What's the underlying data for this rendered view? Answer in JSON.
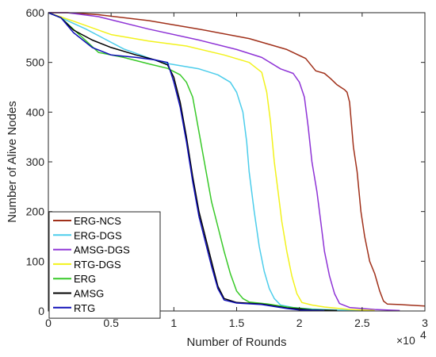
{
  "chart_data": {
    "type": "line",
    "title": "",
    "xlabel": "Number of Rounds",
    "ylabel": "Number of Alive Nodes",
    "x_exponent_label": "×10",
    "x_exponent_power": "4",
    "xlim": [
      0,
      3
    ],
    "ylim": [
      0,
      600
    ],
    "x_ticks": [
      0,
      0.5,
      1,
      1.5,
      2,
      2.5,
      3
    ],
    "x_tick_labels": [
      "0",
      "0.5",
      "1",
      "1.5",
      "2",
      "2.5",
      "3"
    ],
    "y_ticks": [
      0,
      100,
      200,
      300,
      400,
      500,
      600
    ],
    "y_tick_labels": [
      "0",
      "100",
      "200",
      "300",
      "400",
      "500",
      "600"
    ],
    "grid": false,
    "legend_position": "bottom-left",
    "series": [
      {
        "name": "ERG-NCS",
        "color": "#A0301A",
        "points": [
          [
            0,
            600
          ],
          [
            0.15,
            600
          ],
          [
            0.4,
            596
          ],
          [
            0.8,
            584
          ],
          [
            1.2,
            567
          ],
          [
            1.6,
            548
          ],
          [
            1.9,
            526
          ],
          [
            2.05,
            508
          ],
          [
            2.13,
            483
          ],
          [
            2.2,
            478
          ],
          [
            2.25,
            467
          ],
          [
            2.3,
            455
          ],
          [
            2.33,
            450
          ],
          [
            2.36,
            445
          ],
          [
            2.38,
            440
          ],
          [
            2.4,
            420
          ],
          [
            2.43,
            330
          ],
          [
            2.46,
            280
          ],
          [
            2.49,
            200
          ],
          [
            2.52,
            150
          ],
          [
            2.56,
            100
          ],
          [
            2.6,
            75
          ],
          [
            2.64,
            40
          ],
          [
            2.67,
            20
          ],
          [
            2.7,
            14
          ],
          [
            2.8,
            13
          ],
          [
            3.0,
            10
          ]
        ]
      },
      {
        "name": "ERG-DGS",
        "color": "#4CCDEB",
        "points": [
          [
            0,
            600
          ],
          [
            0.1,
            590
          ],
          [
            0.3,
            567
          ],
          [
            0.6,
            527
          ],
          [
            0.9,
            500
          ],
          [
            1.2,
            487
          ],
          [
            1.35,
            475
          ],
          [
            1.45,
            460
          ],
          [
            1.5,
            440
          ],
          [
            1.55,
            400
          ],
          [
            1.58,
            340
          ],
          [
            1.6,
            280
          ],
          [
            1.64,
            200
          ],
          [
            1.68,
            130
          ],
          [
            1.72,
            80
          ],
          [
            1.76,
            45
          ],
          [
            1.8,
            25
          ],
          [
            1.85,
            12
          ],
          [
            1.95,
            7
          ],
          [
            2.1,
            4
          ],
          [
            2.3,
            2
          ],
          [
            2.5,
            1
          ]
        ]
      },
      {
        "name": "AMSG-DGS",
        "color": "#8E33D6",
        "points": [
          [
            0,
            600
          ],
          [
            0.15,
            600
          ],
          [
            0.4,
            592
          ],
          [
            0.8,
            567
          ],
          [
            1.2,
            545
          ],
          [
            1.5,
            526
          ],
          [
            1.7,
            510
          ],
          [
            1.85,
            487
          ],
          [
            1.95,
            478
          ],
          [
            2.0,
            460
          ],
          [
            2.04,
            430
          ],
          [
            2.07,
            370
          ],
          [
            2.1,
            300
          ],
          [
            2.14,
            240
          ],
          [
            2.17,
            180
          ],
          [
            2.2,
            120
          ],
          [
            2.24,
            70
          ],
          [
            2.28,
            35
          ],
          [
            2.32,
            15
          ],
          [
            2.4,
            7
          ],
          [
            2.6,
            3
          ],
          [
            2.8,
            1
          ]
        ]
      },
      {
        "name": "RTG-DGS",
        "color": "#F2F21C",
        "points": [
          [
            0,
            600
          ],
          [
            0.2,
            583
          ],
          [
            0.5,
            556
          ],
          [
            0.8,
            543
          ],
          [
            1.1,
            533
          ],
          [
            1.4,
            515
          ],
          [
            1.6,
            500
          ],
          [
            1.7,
            480
          ],
          [
            1.74,
            440
          ],
          [
            1.77,
            380
          ],
          [
            1.8,
            300
          ],
          [
            1.83,
            240
          ],
          [
            1.86,
            180
          ],
          [
            1.9,
            120
          ],
          [
            1.94,
            70
          ],
          [
            1.98,
            35
          ],
          [
            2.02,
            17
          ],
          [
            2.1,
            12
          ],
          [
            2.2,
            8
          ],
          [
            2.4,
            3
          ],
          [
            2.6,
            1
          ]
        ]
      },
      {
        "name": "ERG",
        "color": "#38C928",
        "points": [
          [
            0,
            600
          ],
          [
            0.1,
            590
          ],
          [
            0.25,
            555
          ],
          [
            0.4,
            520
          ],
          [
            0.6,
            510
          ],
          [
            0.8,
            497
          ],
          [
            0.95,
            488
          ],
          [
            1.05,
            475
          ],
          [
            1.1,
            460
          ],
          [
            1.15,
            430
          ],
          [
            1.2,
            360
          ],
          [
            1.25,
            290
          ],
          [
            1.3,
            220
          ],
          [
            1.35,
            170
          ],
          [
            1.4,
            120
          ],
          [
            1.45,
            75
          ],
          [
            1.5,
            40
          ],
          [
            1.55,
            25
          ],
          [
            1.6,
            18
          ],
          [
            1.75,
            14
          ],
          [
            1.9,
            8
          ],
          [
            2.1,
            3
          ],
          [
            2.3,
            1
          ]
        ]
      },
      {
        "name": "AMSG",
        "color": "#000000",
        "points": [
          [
            0,
            600
          ],
          [
            0.1,
            590
          ],
          [
            0.2,
            565
          ],
          [
            0.35,
            545
          ],
          [
            0.5,
            530
          ],
          [
            0.7,
            515
          ],
          [
            0.85,
            505
          ],
          [
            0.95,
            495
          ],
          [
            1.0,
            470
          ],
          [
            1.05,
            420
          ],
          [
            1.1,
            350
          ],
          [
            1.15,
            270
          ],
          [
            1.2,
            200
          ],
          [
            1.25,
            150
          ],
          [
            1.3,
            100
          ],
          [
            1.35,
            50
          ],
          [
            1.4,
            25
          ],
          [
            1.5,
            17
          ],
          [
            1.7,
            14
          ],
          [
            1.9,
            6
          ],
          [
            2.1,
            2
          ],
          [
            2.3,
            1
          ]
        ]
      },
      {
        "name": "RTG",
        "color": "#1010B8",
        "points": [
          [
            0,
            600
          ],
          [
            0.1,
            590
          ],
          [
            0.2,
            560
          ],
          [
            0.35,
            530
          ],
          [
            0.5,
            515
          ],
          [
            0.7,
            510
          ],
          [
            0.85,
            505
          ],
          [
            0.95,
            500
          ],
          [
            1.0,
            460
          ],
          [
            1.05,
            410
          ],
          [
            1.1,
            340
          ],
          [
            1.15,
            260
          ],
          [
            1.2,
            190
          ],
          [
            1.25,
            140
          ],
          [
            1.3,
            90
          ],
          [
            1.35,
            45
          ],
          [
            1.4,
            22
          ],
          [
            1.5,
            16
          ],
          [
            1.7,
            13
          ],
          [
            1.9,
            5
          ],
          [
            2.0,
            2
          ],
          [
            2.2,
            1
          ]
        ]
      }
    ]
  }
}
